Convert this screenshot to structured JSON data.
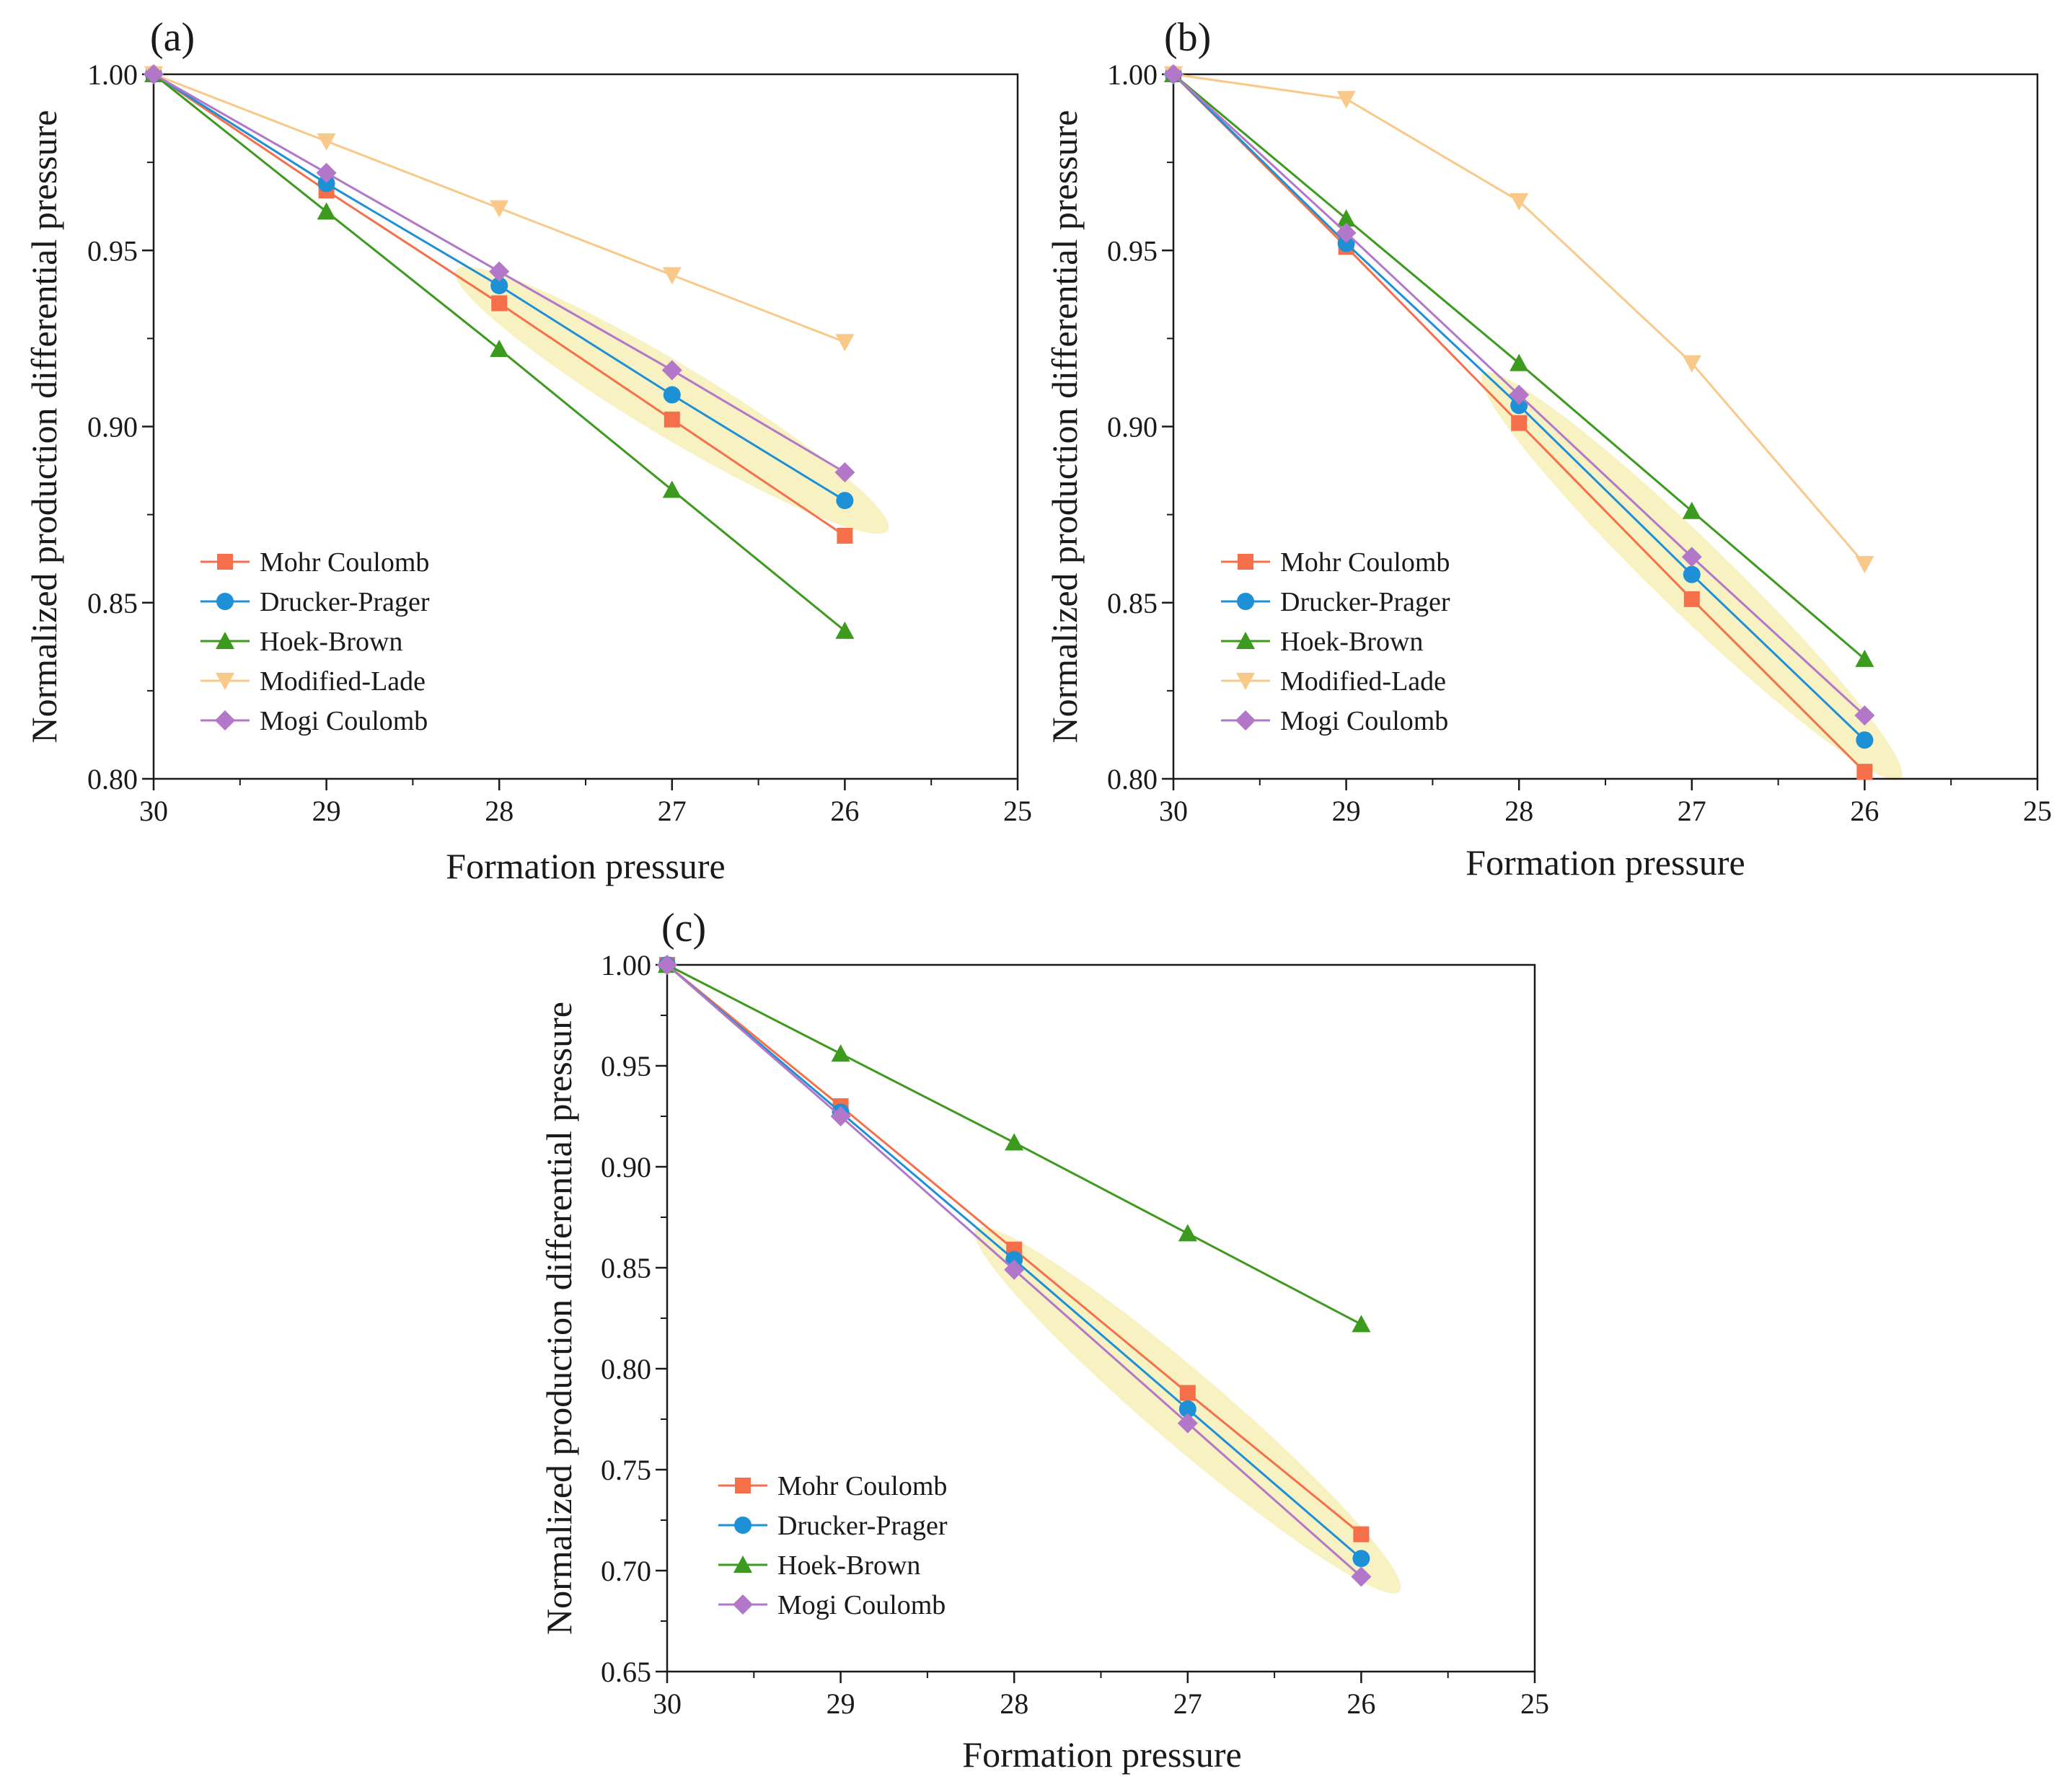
{
  "chart_data": [
    {
      "type": "line",
      "panel_label": "(a)",
      "xlabel": "Formation pressure",
      "ylabel": "Normalized production differential pressure",
      "xlim": [
        30,
        25
      ],
      "ylim": [
        0.8,
        1.0
      ],
      "x_ticks": [
        "30",
        "29",
        "28",
        "27",
        "26",
        "25"
      ],
      "y_ticks": [
        "0.80",
        "0.85",
        "0.90",
        "0.95",
        "1.00"
      ],
      "x": [
        30,
        29,
        28,
        27,
        26
      ],
      "highlight": {
        "from": [
          28,
          0.937
        ],
        "to": [
          26,
          0.878
        ]
      },
      "legend_position": "bottom-left",
      "series": [
        {
          "name": "Mohr Coulomb",
          "marker": "square",
          "color": "#F5704A",
          "values": [
            1.0,
            0.967,
            0.935,
            0.902,
            0.869
          ]
        },
        {
          "name": "Drucker-Prager",
          "marker": "circle",
          "color": "#1E90D6",
          "values": [
            1.0,
            0.969,
            0.94,
            0.909,
            0.879
          ]
        },
        {
          "name": "Hoek-Brown",
          "marker": "triangle-up",
          "color": "#3C9A1E",
          "values": [
            1.0,
            0.961,
            0.922,
            0.882,
            0.842
          ]
        },
        {
          "name": "Modified-Lade",
          "marker": "triangle-down",
          "color": "#F9C98A",
          "values": [
            1.0,
            0.981,
            0.962,
            0.943,
            0.924
          ]
        },
        {
          "name": "Mogi Coulomb",
          "marker": "diamond",
          "color": "#B277C8",
          "values": [
            1.0,
            0.972,
            0.944,
            0.916,
            0.887
          ]
        }
      ]
    },
    {
      "type": "line",
      "panel_label": "(b)",
      "xlabel": "Formation pressure",
      "ylabel": "Normalized production differential pressure",
      "xlim": [
        30,
        25
      ],
      "ylim": [
        0.8,
        1.0
      ],
      "x_ticks": [
        "30",
        "29",
        "28",
        "27",
        "26",
        "25"
      ],
      "y_ticks": [
        "0.80",
        "0.85",
        "0.90",
        "0.95",
        "1.00"
      ],
      "x": [
        30,
        29,
        28,
        27,
        26
      ],
      "highlight": {
        "from": [
          28,
          0.905
        ],
        "to": [
          26,
          0.81
        ]
      },
      "legend_position": "bottom-left",
      "series": [
        {
          "name": "Mohr Coulomb",
          "marker": "square",
          "color": "#F5704A",
          "values": [
            1.0,
            0.951,
            0.901,
            0.851,
            0.802
          ]
        },
        {
          "name": "Drucker-Prager",
          "marker": "circle",
          "color": "#1E90D6",
          "values": [
            1.0,
            0.952,
            0.906,
            0.858,
            0.811
          ]
        },
        {
          "name": "Hoek-Brown",
          "marker": "triangle-up",
          "color": "#3C9A1E",
          "values": [
            1.0,
            0.959,
            0.918,
            0.876,
            0.834
          ]
        },
        {
          "name": "Modified-Lade",
          "marker": "triangle-down",
          "color": "#F9C98A",
          "values": [
            1.0,
            0.993,
            0.964,
            0.918,
            0.861
          ]
        },
        {
          "name": "Mogi Coulomb",
          "marker": "diamond",
          "color": "#B277C8",
          "values": [
            1.0,
            0.955,
            0.909,
            0.863,
            0.818
          ]
        }
      ]
    },
    {
      "type": "line",
      "panel_label": "(c)",
      "xlabel": "Formation pressure",
      "ylabel": "Normalized production differential pressure",
      "xlim": [
        30,
        25
      ],
      "ylim": [
        0.65,
        1.0
      ],
      "x_ticks": [
        "30",
        "29",
        "28",
        "27",
        "26",
        "25"
      ],
      "y_ticks": [
        "0.65",
        "0.70",
        "0.75",
        "0.80",
        "0.85",
        "0.90",
        "0.95",
        "1.00"
      ],
      "x": [
        30,
        29,
        28,
        27,
        26
      ],
      "highlight": {
        "from": [
          28,
          0.853
        ],
        "to": [
          26,
          0.706
        ]
      },
      "legend_position": "bottom-left",
      "series": [
        {
          "name": "Mohr Coulomb",
          "marker": "square",
          "color": "#F5704A",
          "values": [
            1.0,
            0.93,
            0.859,
            0.788,
            0.718
          ]
        },
        {
          "name": "Drucker-Prager",
          "marker": "circle",
          "color": "#1E90D6",
          "values": [
            1.0,
            0.927,
            0.854,
            0.78,
            0.706
          ]
        },
        {
          "name": "Hoek-Brown",
          "marker": "triangle-up",
          "color": "#3C9A1E",
          "values": [
            1.0,
            0.956,
            0.912,
            0.867,
            0.822
          ]
        },
        {
          "name": "Mogi Coulomb",
          "marker": "diamond",
          "color": "#B277C8",
          "values": [
            1.0,
            0.925,
            0.849,
            0.773,
            0.697
          ]
        }
      ]
    }
  ]
}
